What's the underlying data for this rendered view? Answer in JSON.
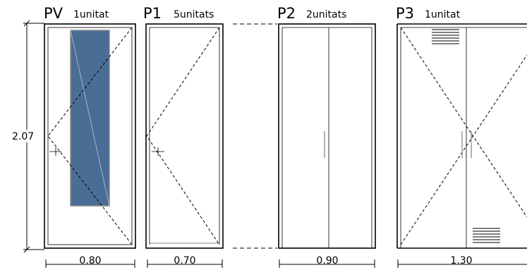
{
  "schedule": {
    "height_label": "2.07",
    "doors": [
      {
        "code": "PV",
        "quantity": "1unitat",
        "width": "0.80",
        "glazing": true
      },
      {
        "code": "P1",
        "quantity": "5unitats",
        "width": "0.70"
      },
      {
        "code": "P2",
        "quantity": "2unitats",
        "width": "0.90"
      },
      {
        "code": "P3",
        "quantity": "1unitat",
        "width": "1.30"
      }
    ]
  },
  "colors": {
    "line": "#000000",
    "glass_fill": "#4a6d96",
    "glass_stroke": "#8a8a8a",
    "dashed": "#000000"
  }
}
